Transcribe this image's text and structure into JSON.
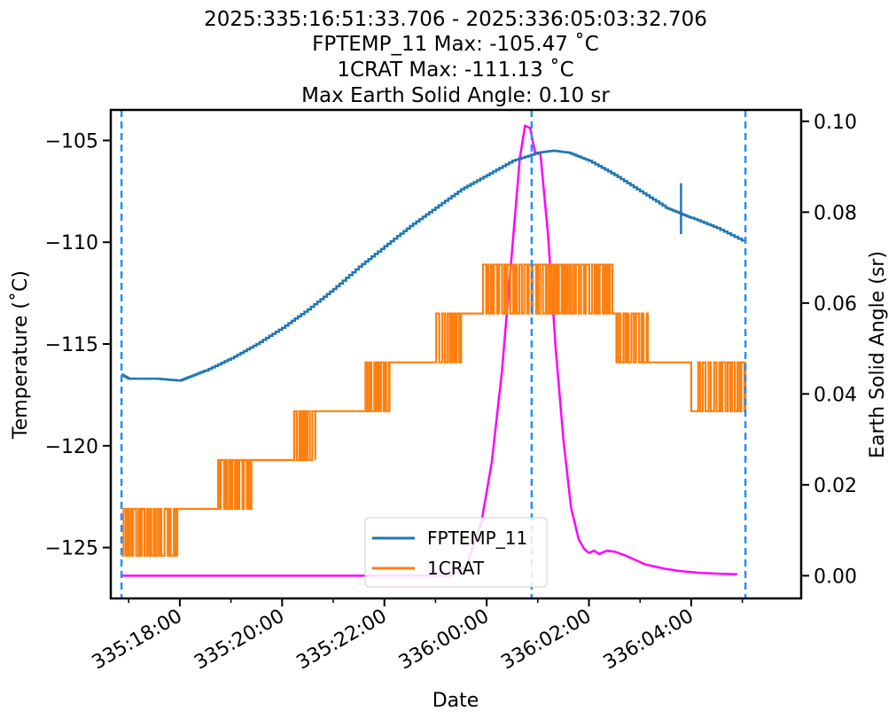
{
  "chart_data": {
    "type": "line",
    "title_lines": [
      "2025:335:16:51:33.706 - 2025:336:05:03:32.706",
      "FPTEMP_11 Max: -105.47 ˚C",
      "1CRAT Max: -111.13 ˚C",
      "Max Earth Solid Angle: 0.10 sr"
    ],
    "xlabel": "Date",
    "ylabel": "Temperature (˚C)",
    "y2label": "Earth Solid Angle (sr)",
    "x_unit": "hours after 2025:335:16:00:00",
    "xlim": [
      0.65,
      14.15
    ],
    "ylim": [
      -127.5,
      -103.5
    ],
    "y2lim": [
      -0.005,
      0.1025
    ],
    "x_ticks": [
      {
        "x": 2,
        "label": "335:18:00"
      },
      {
        "x": 4,
        "label": "335:20:00"
      },
      {
        "x": 6,
        "label": "335:22:00"
      },
      {
        "x": 8,
        "label": "336:00:00"
      },
      {
        "x": 10,
        "label": "336:02:00"
      },
      {
        "x": 12,
        "label": "336:04:00"
      }
    ],
    "y_ticks": [
      {
        "v": -105,
        "label": "−105"
      },
      {
        "v": -110,
        "label": "−110"
      },
      {
        "v": -115,
        "label": "−115"
      },
      {
        "v": -120,
        "label": "−120"
      },
      {
        "v": -125,
        "label": "−125"
      }
    ],
    "y2_ticks": [
      {
        "v": 0.0,
        "label": "0.00"
      },
      {
        "v": 0.02,
        "label": "0.02"
      },
      {
        "v": 0.04,
        "label": "0.04"
      },
      {
        "v": 0.06,
        "label": "0.06"
      },
      {
        "v": 0.08,
        "label": "0.08"
      },
      {
        "v": 0.1,
        "label": "0.10"
      }
    ],
    "vlines": [
      0.86,
      8.88,
      13.06
    ],
    "legend": {
      "position": "lower-center",
      "entries": [
        "FPTEMP_11",
        "1CRAT"
      ]
    },
    "series": [
      {
        "name": "FPTEMP_11",
        "axis": "left",
        "color": "#1f77b4",
        "points": [
          [
            0.86,
            -116.5
          ],
          [
            1.0,
            -116.7
          ],
          [
            1.5,
            -116.7
          ],
          [
            2.0,
            -116.8
          ],
          [
            2.2,
            -116.6
          ],
          [
            2.5,
            -116.3
          ],
          [
            3.0,
            -115.7
          ],
          [
            3.5,
            -115.0
          ],
          [
            4.0,
            -114.2
          ],
          [
            4.5,
            -113.3
          ],
          [
            5.0,
            -112.3
          ],
          [
            5.5,
            -111.2
          ],
          [
            6.0,
            -110.2
          ],
          [
            6.5,
            -109.2
          ],
          [
            7.0,
            -108.3
          ],
          [
            7.5,
            -107.4
          ],
          [
            8.0,
            -106.7
          ],
          [
            8.5,
            -106.0
          ],
          [
            9.0,
            -105.6
          ],
          [
            9.3,
            -105.5
          ],
          [
            9.6,
            -105.6
          ],
          [
            10.0,
            -106.0
          ],
          [
            10.5,
            -106.7
          ],
          [
            11.0,
            -107.5
          ],
          [
            11.5,
            -108.3
          ],
          [
            11.8,
            -108.6
          ],
          [
            12.0,
            -108.8
          ],
          [
            12.5,
            -109.3
          ],
          [
            13.06,
            -110.0
          ]
        ]
      },
      {
        "name": "1CRAT",
        "axis": "left",
        "color": "#ff7f0e",
        "levels": [
          -125.4,
          -123.1,
          -120.7,
          -118.3,
          -115.9,
          -113.5,
          -111.1
        ],
        "steps": [
          {
            "x0": 0.86,
            "x1": 1.95,
            "lo": -125.4,
            "hi": -123.1,
            "noise": [
              0.86,
              1.95
            ]
          },
          {
            "x0": 1.95,
            "x1": 3.4,
            "lo": -123.1,
            "hi": -120.7,
            "noise": [
              2.7,
              3.4
            ]
          },
          {
            "x0": 3.4,
            "x1": 4.65,
            "lo": -120.7,
            "hi": -118.3,
            "noise": [
              4.2,
              4.65
            ]
          },
          {
            "x0": 4.65,
            "x1": 6.1,
            "lo": -118.3,
            "hi": -115.9,
            "noise": [
              5.6,
              6.1
            ]
          },
          {
            "x0": 6.1,
            "x1": 7.5,
            "lo": -115.9,
            "hi": -113.5,
            "noise": [
              6.95,
              7.5
            ]
          },
          {
            "x0": 7.5,
            "x1": 10.5,
            "lo": -113.5,
            "hi": -111.1,
            "noise": [
              7.9,
              8.9
            ],
            "noise2": [
              8.95,
              9.55
            ],
            "flat_top": [
              9.55,
              10.5
            ]
          },
          {
            "x0": 10.5,
            "x1": 11.15,
            "lo": -115.9,
            "hi": -113.5,
            "noise": [
              10.5,
              11.15
            ],
            "flat_hi": true
          },
          {
            "x0": 11.15,
            "x1": 12.0,
            "lo": -115.9,
            "hi": -113.5,
            "flat_lo": true
          },
          {
            "x0": 12.0,
            "x1": 13.06,
            "lo": -118.3,
            "hi": -115.9,
            "noise": [
              12.1,
              13.06
            ]
          }
        ]
      },
      {
        "name": "",
        "axis": "right",
        "color": "#ff00ff",
        "points": [
          [
            0.86,
            0.0
          ],
          [
            7.3,
            0.0
          ],
          [
            7.6,
            0.002
          ],
          [
            7.9,
            0.012
          ],
          [
            8.1,
            0.025
          ],
          [
            8.3,
            0.045
          ],
          [
            8.5,
            0.072
          ],
          [
            8.65,
            0.092
          ],
          [
            8.75,
            0.099
          ],
          [
            8.85,
            0.0985
          ],
          [
            8.95,
            0.093
          ],
          [
            9.05,
            0.093
          ],
          [
            9.2,
            0.075
          ],
          [
            9.35,
            0.05
          ],
          [
            9.5,
            0.03
          ],
          [
            9.65,
            0.015
          ],
          [
            9.8,
            0.008
          ],
          [
            9.9,
            0.006
          ],
          [
            10.0,
            0.005
          ],
          [
            10.1,
            0.0055
          ],
          [
            10.2,
            0.0048
          ],
          [
            10.35,
            0.0055
          ],
          [
            10.5,
            0.0053
          ],
          [
            10.7,
            0.0045
          ],
          [
            10.9,
            0.0035
          ],
          [
            11.1,
            0.0025
          ],
          [
            11.3,
            0.002
          ],
          [
            11.5,
            0.0015
          ],
          [
            11.8,
            0.001
          ],
          [
            12.2,
            0.0006
          ],
          [
            12.6,
            0.0004
          ],
          [
            12.9,
            0.0003
          ]
        ]
      }
    ]
  }
}
